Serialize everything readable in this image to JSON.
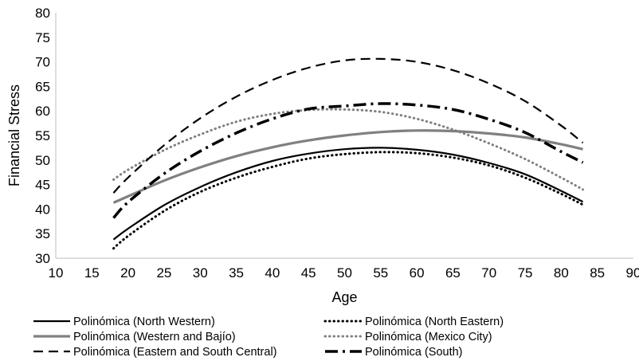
{
  "chart_data": {
    "type": "line",
    "title": "",
    "xlabel": "Age",
    "ylabel": "Financial Stress",
    "xlim": [
      10,
      90
    ],
    "ylim": [
      30,
      80
    ],
    "xticks": [
      "10",
      "15",
      "20",
      "25",
      "30",
      "35",
      "40",
      "45",
      "50",
      "55",
      "60",
      "65",
      "70",
      "75",
      "80",
      "85",
      "90"
    ],
    "yticks": [
      "30",
      "35",
      "40",
      "45",
      "50",
      "55",
      "60",
      "65",
      "70",
      "75",
      "80"
    ],
    "grid": false,
    "legend_position": "bottom",
    "x": [
      18,
      20,
      25,
      30,
      35,
      40,
      45,
      50,
      55,
      60,
      65,
      70,
      75,
      80,
      83
    ],
    "series": [
      {
        "name": "Polinómica (North Western)",
        "style": "solid",
        "color": "#000000",
        "values": [
          33.8,
          36.0,
          40.8,
          44.5,
          47.5,
          49.8,
          51.3,
          52.2,
          52.5,
          52.1,
          51.1,
          49.4,
          47.1,
          43.7,
          41.5
        ]
      },
      {
        "name": "Polinómica (North Eastern)",
        "style": "dotted",
        "color": "#000000",
        "values": [
          32.0,
          34.5,
          39.6,
          43.5,
          46.4,
          48.6,
          50.3,
          51.2,
          51.6,
          51.4,
          50.5,
          48.9,
          46.4,
          43.1,
          40.9
        ]
      },
      {
        "name": "Polinómica (Western and Bajío)",
        "style": "solid-thick",
        "color": "#808080",
        "values": [
          41.3,
          42.6,
          45.8,
          48.5,
          50.8,
          52.6,
          54.0,
          55.0,
          55.7,
          56.0,
          55.9,
          55.4,
          54.6,
          53.2,
          52.2
        ]
      },
      {
        "name": "Polinómica (Mexico City)",
        "style": "dotted",
        "color": "#808080",
        "values": [
          46.0,
          48.0,
          52.0,
          55.2,
          57.8,
          59.4,
          60.2,
          60.3,
          59.8,
          58.4,
          56.2,
          53.4,
          50.2,
          46.4,
          44.0
        ]
      },
      {
        "name": "Polinómica (Eastern and South Central)",
        "style": "dashed",
        "color": "#000000",
        "values": [
          43.3,
          46.4,
          53.0,
          58.5,
          62.9,
          66.3,
          68.8,
          70.3,
          70.6,
          70.0,
          68.3,
          65.6,
          62.0,
          57.0,
          53.5
        ]
      },
      {
        "name": "Polinómica (South)",
        "style": "dash-dot",
        "color": "#000000",
        "values": [
          38.2,
          41.4,
          47.2,
          51.8,
          55.5,
          58.4,
          60.4,
          61.0,
          61.5,
          61.2,
          60.3,
          58.3,
          55.6,
          51.7,
          49.5
        ]
      }
    ]
  }
}
